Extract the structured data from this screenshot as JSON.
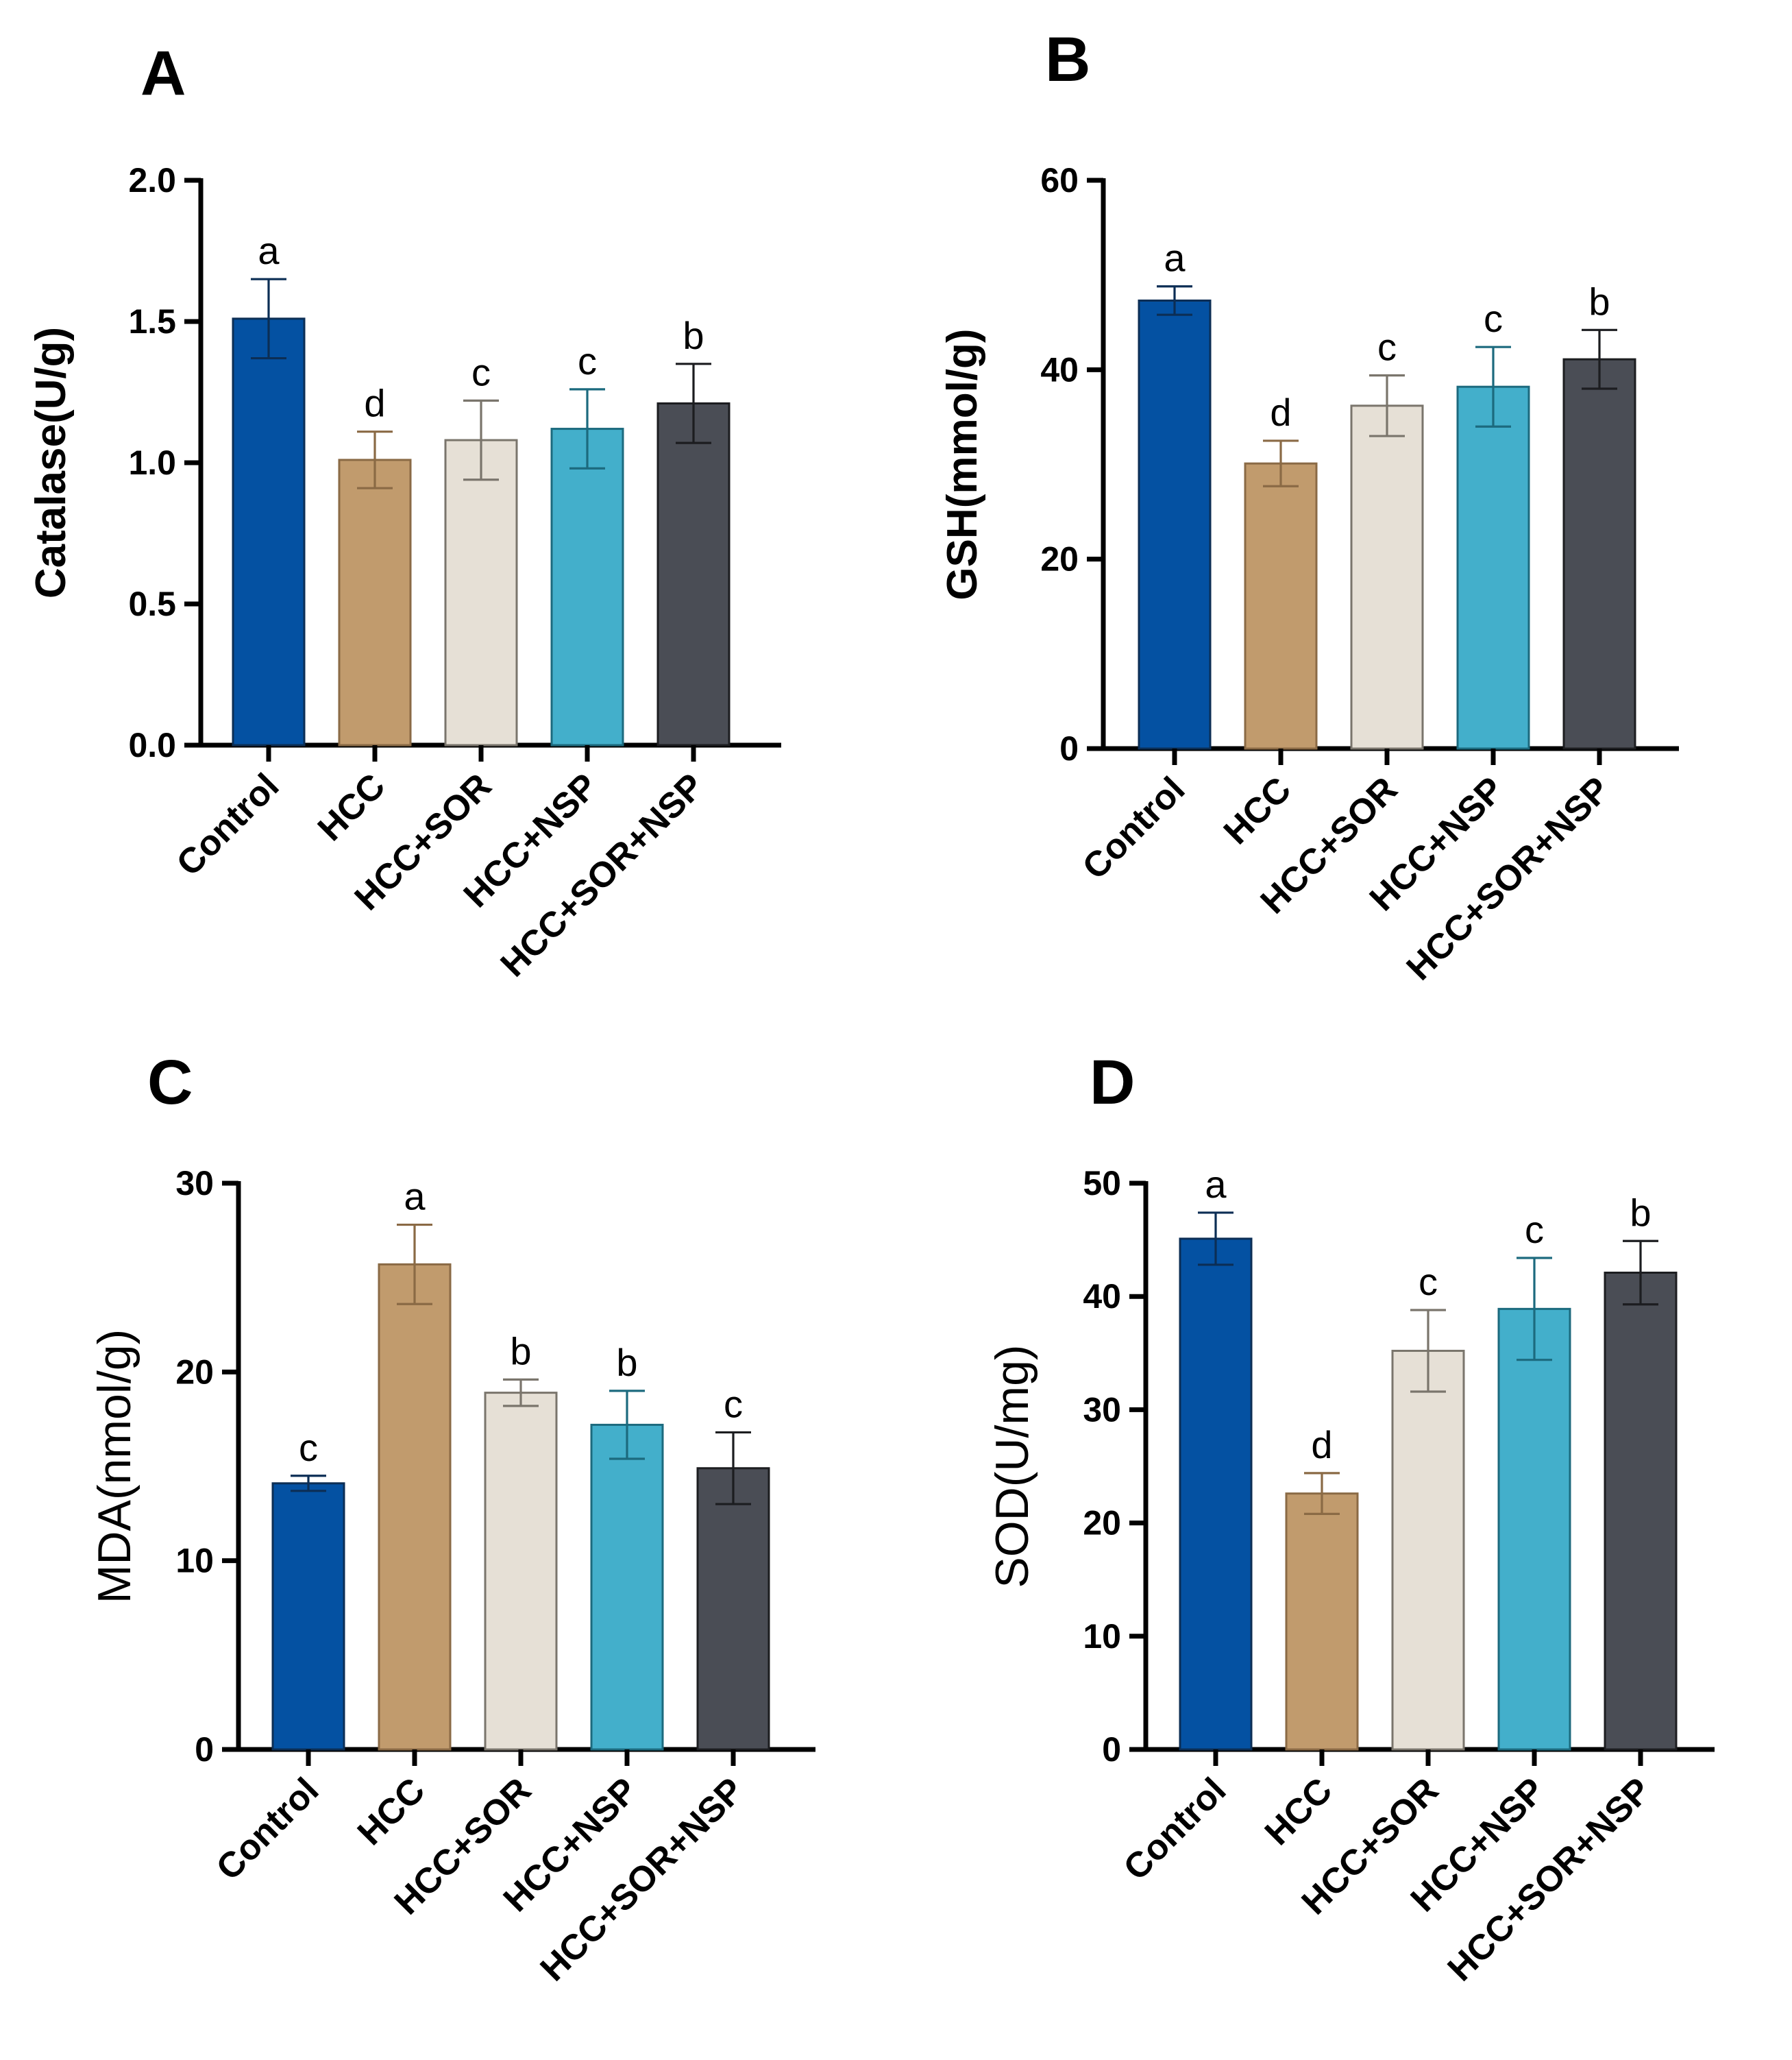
{
  "figure": {
    "colors": {
      "Control": "#0451a2",
      "HCC": "#c19b6d",
      "HCC+SOR": "#e6e0d6",
      "HCC+NSP": "#43afcb",
      "HCC+SOR+NSP": "#4a4d55"
    },
    "edge_colors": {
      "Control": "#0c2e55",
      "HCC": "#8a6a45",
      "HCC+SOR": "#7a756c",
      "HCC+NSP": "#1c6a7e",
      "HCC+SOR+NSP": "#1c1d20"
    }
  },
  "chart_data": [
    {
      "panel": "A",
      "type": "bar",
      "ylabel": "Catalase(U/g)",
      "ylabel_style": "bold",
      "categories": [
        "Control",
        "HCC",
        "HCC+SOR",
        "HCC+NSP",
        "HCC+SOR+NSP"
      ],
      "values": [
        1.51,
        1.01,
        1.08,
        1.12,
        1.21
      ],
      "errors": [
        0.14,
        0.1,
        0.14,
        0.14,
        0.14
      ],
      "significance": [
        "a",
        "d",
        "c",
        "c",
        "b"
      ],
      "ylim": [
        0,
        2.0
      ],
      "yticks": [
        "0.0",
        "0.5",
        "1.0",
        "1.5",
        "2.0"
      ]
    },
    {
      "panel": "B",
      "type": "bar",
      "ylabel": "GSH(mmol/g)",
      "ylabel_style": "bold",
      "categories": [
        "Control",
        "HCC",
        "HCC+SOR",
        "HCC+NSP",
        "HCC+SOR+NSP"
      ],
      "values": [
        47.3,
        30.1,
        36.2,
        38.2,
        41.1
      ],
      "errors": [
        1.5,
        2.4,
        3.2,
        4.2,
        3.1
      ],
      "significance": [
        "a",
        "d",
        "c",
        "c",
        "b"
      ],
      "ylim": [
        0,
        60
      ],
      "yticks": [
        "0",
        "20",
        "40",
        "60"
      ]
    },
    {
      "panel": "C",
      "type": "bar",
      "ylabel": "MDA(nmol/g)",
      "ylabel_style": "normal",
      "categories": [
        "Control",
        "HCC",
        "HCC+SOR",
        "HCC+NSP",
        "HCC+SOR+NSP"
      ],
      "values": [
        14.1,
        25.7,
        18.9,
        17.2,
        14.9
      ],
      "errors": [
        0.4,
        2.1,
        0.7,
        1.8,
        1.9
      ],
      "significance": [
        "c",
        "a",
        "b",
        "b",
        "c"
      ],
      "ylim": [
        0,
        30
      ],
      "yticks": [
        "0",
        "10",
        "20",
        "30"
      ]
    },
    {
      "panel": "D",
      "type": "bar",
      "ylabel": "SOD(U/mg)",
      "ylabel_style": "normal",
      "categories": [
        "Control",
        "HCC",
        "HCC+SOR",
        "HCC+NSP",
        "HCC+SOR+NSP"
      ],
      "values": [
        45.1,
        22.6,
        35.2,
        38.9,
        42.1
      ],
      "errors": [
        2.3,
        1.8,
        3.6,
        4.5,
        2.8
      ],
      "significance": [
        "a",
        "d",
        "c",
        "c",
        "b"
      ],
      "ylim": [
        0,
        50
      ],
      "yticks": [
        "0",
        "10",
        "20",
        "30",
        "40",
        "50"
      ]
    }
  ]
}
